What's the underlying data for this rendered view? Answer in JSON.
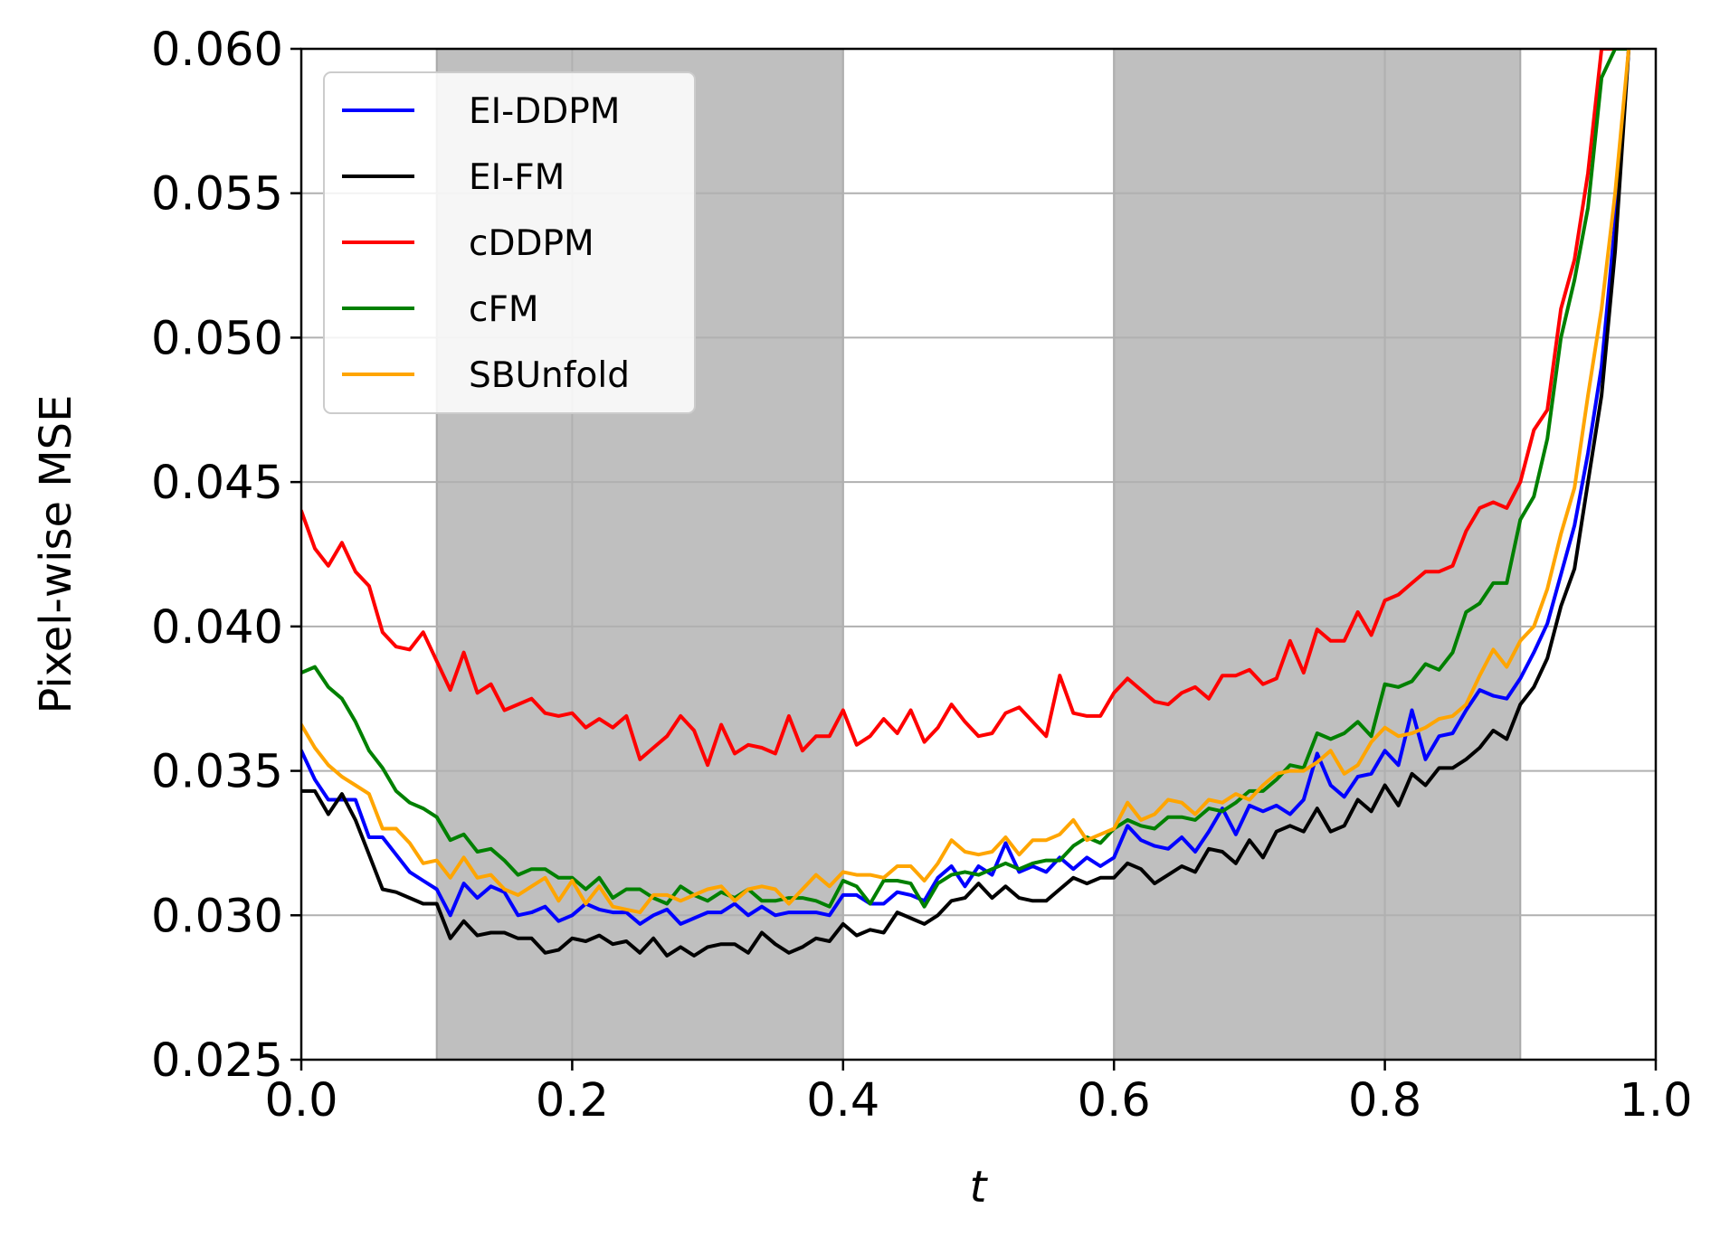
{
  "chart_data": {
    "type": "line",
    "title": "",
    "xlabel": "t",
    "ylabel": "Pixel-wise MSE",
    "xlim": [
      0.0,
      1.0
    ],
    "ylim": [
      0.025,
      0.06
    ],
    "x_ticks": [
      "0.0",
      "0.2",
      "0.4",
      "0.6",
      "0.8",
      "1.0"
    ],
    "y_ticks": [
      "0.025",
      "0.030",
      "0.035",
      "0.040",
      "0.045",
      "0.050",
      "0.055",
      "0.060"
    ],
    "grid": true,
    "legend_position": "top-left",
    "shaded_regions": [
      [
        0.1,
        0.4
      ],
      [
        0.6,
        0.9
      ]
    ],
    "x": [
      0.0,
      0.01,
      0.02,
      0.03,
      0.04,
      0.05,
      0.06,
      0.07,
      0.08,
      0.09,
      0.1,
      0.11,
      0.12,
      0.13,
      0.14,
      0.15,
      0.16,
      0.17,
      0.18,
      0.19,
      0.2,
      0.21,
      0.22,
      0.23,
      0.24,
      0.25,
      0.26,
      0.27,
      0.28,
      0.29,
      0.3,
      0.31,
      0.32,
      0.33,
      0.34,
      0.35,
      0.36,
      0.37,
      0.38,
      0.39,
      0.4,
      0.41,
      0.42,
      0.43,
      0.44,
      0.45,
      0.46,
      0.47,
      0.48,
      0.49,
      0.5,
      0.51,
      0.52,
      0.53,
      0.54,
      0.55,
      0.56,
      0.57,
      0.58,
      0.59,
      0.6,
      0.61,
      0.62,
      0.63,
      0.64,
      0.65,
      0.66,
      0.67,
      0.68,
      0.69,
      0.7,
      0.71,
      0.72,
      0.73,
      0.74,
      0.75,
      0.76,
      0.77,
      0.78,
      0.79,
      0.8,
      0.81,
      0.82,
      0.83,
      0.84,
      0.85,
      0.86,
      0.87,
      0.88,
      0.89,
      0.9,
      0.91,
      0.92,
      0.93,
      0.94,
      0.95,
      0.96,
      0.97,
      0.98
    ],
    "series": [
      {
        "name": "EI-DDPM",
        "color": "#0000ff",
        "values": [
          0.0357,
          0.0347,
          0.034,
          0.034,
          0.034,
          0.0327,
          0.0327,
          0.0321,
          0.0315,
          0.0312,
          0.0309,
          0.03,
          0.0311,
          0.0306,
          0.031,
          0.0308,
          0.03,
          0.0301,
          0.0303,
          0.0298,
          0.03,
          0.0304,
          0.0302,
          0.0301,
          0.0301,
          0.0297,
          0.03,
          0.0302,
          0.0297,
          0.0299,
          0.0301,
          0.0301,
          0.0304,
          0.03,
          0.0303,
          0.03,
          0.0301,
          0.0301,
          0.0301,
          0.03,
          0.0307,
          0.0307,
          0.0304,
          0.0304,
          0.0308,
          0.0307,
          0.0305,
          0.0313,
          0.0317,
          0.031,
          0.0317,
          0.0314,
          0.0325,
          0.0315,
          0.0317,
          0.0315,
          0.032,
          0.0316,
          0.032,
          0.0317,
          0.032,
          0.0331,
          0.0326,
          0.0324,
          0.0323,
          0.0327,
          0.0322,
          0.0329,
          0.0337,
          0.0328,
          0.0338,
          0.0336,
          0.0338,
          0.0335,
          0.034,
          0.0356,
          0.0345,
          0.0341,
          0.0348,
          0.0349,
          0.0357,
          0.0352,
          0.0371,
          0.0354,
          0.0362,
          0.0363,
          0.0371,
          0.0378,
          0.0376,
          0.0375,
          0.0382,
          0.0391,
          0.0401,
          0.0418,
          0.0435,
          0.046,
          0.049,
          0.054,
          0.06
        ]
      },
      {
        "name": "EI-FM",
        "color": "#000000",
        "values": [
          0.0343,
          0.0343,
          0.0335,
          0.0342,
          0.0333,
          0.0321,
          0.0309,
          0.0308,
          0.0306,
          0.0304,
          0.0304,
          0.0292,
          0.0298,
          0.0293,
          0.0294,
          0.0294,
          0.0292,
          0.0292,
          0.0287,
          0.0288,
          0.0292,
          0.0291,
          0.0293,
          0.029,
          0.0291,
          0.0287,
          0.0292,
          0.0286,
          0.0289,
          0.0286,
          0.0289,
          0.029,
          0.029,
          0.0287,
          0.0294,
          0.029,
          0.0287,
          0.0289,
          0.0292,
          0.0291,
          0.0297,
          0.0293,
          0.0295,
          0.0294,
          0.0301,
          0.0299,
          0.0297,
          0.03,
          0.0305,
          0.0306,
          0.0311,
          0.0306,
          0.031,
          0.0306,
          0.0305,
          0.0305,
          0.0309,
          0.0313,
          0.0311,
          0.0313,
          0.0313,
          0.0318,
          0.0316,
          0.0311,
          0.0314,
          0.0317,
          0.0315,
          0.0323,
          0.0322,
          0.0318,
          0.0326,
          0.032,
          0.0329,
          0.0331,
          0.0329,
          0.0337,
          0.0329,
          0.0331,
          0.034,
          0.0336,
          0.0345,
          0.0338,
          0.0349,
          0.0345,
          0.0351,
          0.0351,
          0.0354,
          0.0358,
          0.0364,
          0.0361,
          0.0373,
          0.0379,
          0.0389,
          0.0407,
          0.042,
          0.045,
          0.048,
          0.053,
          0.06
        ]
      },
      {
        "name": "cDDPM",
        "color": "#ff0000",
        "values": [
          0.044,
          0.0427,
          0.0421,
          0.0429,
          0.0419,
          0.0414,
          0.0398,
          0.0393,
          0.0392,
          0.0398,
          0.0388,
          0.0378,
          0.0391,
          0.0377,
          0.038,
          0.0371,
          0.0373,
          0.0375,
          0.037,
          0.0369,
          0.037,
          0.0365,
          0.0368,
          0.0365,
          0.0369,
          0.0354,
          0.0358,
          0.0362,
          0.0369,
          0.0364,
          0.0352,
          0.0366,
          0.0356,
          0.0359,
          0.0358,
          0.0356,
          0.0369,
          0.0357,
          0.0362,
          0.0362,
          0.0371,
          0.0359,
          0.0362,
          0.0368,
          0.0363,
          0.0371,
          0.036,
          0.0365,
          0.0373,
          0.0367,
          0.0362,
          0.0363,
          0.037,
          0.0372,
          0.0367,
          0.0362,
          0.0383,
          0.037,
          0.0369,
          0.0369,
          0.0377,
          0.0382,
          0.0378,
          0.0374,
          0.0373,
          0.0377,
          0.0379,
          0.0375,
          0.0383,
          0.0383,
          0.0385,
          0.038,
          0.0382,
          0.0395,
          0.0384,
          0.0399,
          0.0395,
          0.0395,
          0.0405,
          0.0397,
          0.0409,
          0.0411,
          0.0415,
          0.0419,
          0.0419,
          0.0421,
          0.0433,
          0.0441,
          0.0443,
          0.0441,
          0.045,
          0.0468,
          0.0475,
          0.051,
          0.0527,
          0.0557,
          0.06,
          0.06,
          0.06
        ]
      },
      {
        "name": "cFM",
        "color": "#008000",
        "values": [
          0.0384,
          0.0386,
          0.0379,
          0.0375,
          0.0367,
          0.0357,
          0.0351,
          0.0343,
          0.0339,
          0.0337,
          0.0334,
          0.0326,
          0.0328,
          0.0322,
          0.0323,
          0.0319,
          0.0314,
          0.0316,
          0.0316,
          0.0313,
          0.0313,
          0.0309,
          0.0313,
          0.0306,
          0.0309,
          0.0309,
          0.0306,
          0.0304,
          0.031,
          0.0307,
          0.0305,
          0.0308,
          0.0306,
          0.0309,
          0.0305,
          0.0305,
          0.0306,
          0.0306,
          0.0305,
          0.0303,
          0.0312,
          0.031,
          0.0304,
          0.0312,
          0.0312,
          0.0311,
          0.0303,
          0.0311,
          0.0314,
          0.0315,
          0.0314,
          0.0316,
          0.0318,
          0.0316,
          0.0318,
          0.0319,
          0.0319,
          0.0324,
          0.0327,
          0.0325,
          0.033,
          0.0333,
          0.0331,
          0.033,
          0.0334,
          0.0334,
          0.0333,
          0.0337,
          0.0336,
          0.0339,
          0.0343,
          0.0343,
          0.0347,
          0.0352,
          0.0351,
          0.0363,
          0.0361,
          0.0363,
          0.0367,
          0.0362,
          0.038,
          0.0379,
          0.0381,
          0.0387,
          0.0385,
          0.0391,
          0.0405,
          0.0408,
          0.0415,
          0.0415,
          0.0437,
          0.0445,
          0.0465,
          0.05,
          0.052,
          0.0545,
          0.059,
          0.06,
          0.06
        ]
      },
      {
        "name": "SBUnfold",
        "color": "#ffa500",
        "values": [
          0.0366,
          0.0358,
          0.0352,
          0.0348,
          0.0345,
          0.0342,
          0.033,
          0.033,
          0.0325,
          0.0318,
          0.0319,
          0.0313,
          0.032,
          0.0313,
          0.0314,
          0.0309,
          0.0307,
          0.031,
          0.0313,
          0.0305,
          0.0312,
          0.0304,
          0.031,
          0.0303,
          0.0302,
          0.0301,
          0.0307,
          0.0307,
          0.0305,
          0.0307,
          0.0309,
          0.031,
          0.0305,
          0.0309,
          0.031,
          0.0309,
          0.0304,
          0.0309,
          0.0314,
          0.031,
          0.0315,
          0.0314,
          0.0314,
          0.0313,
          0.0317,
          0.0317,
          0.0312,
          0.0318,
          0.0326,
          0.0322,
          0.0321,
          0.0322,
          0.0327,
          0.0321,
          0.0326,
          0.0326,
          0.0328,
          0.0333,
          0.0326,
          0.0328,
          0.033,
          0.0339,
          0.0333,
          0.0335,
          0.034,
          0.0339,
          0.0335,
          0.034,
          0.0339,
          0.0342,
          0.034,
          0.0345,
          0.0349,
          0.035,
          0.035,
          0.0353,
          0.0357,
          0.0349,
          0.0352,
          0.036,
          0.0365,
          0.0362,
          0.0363,
          0.0365,
          0.0368,
          0.0369,
          0.0373,
          0.0383,
          0.0392,
          0.0386,
          0.0395,
          0.04,
          0.0413,
          0.0432,
          0.0448,
          0.048,
          0.051,
          0.055,
          0.06
        ]
      }
    ]
  }
}
